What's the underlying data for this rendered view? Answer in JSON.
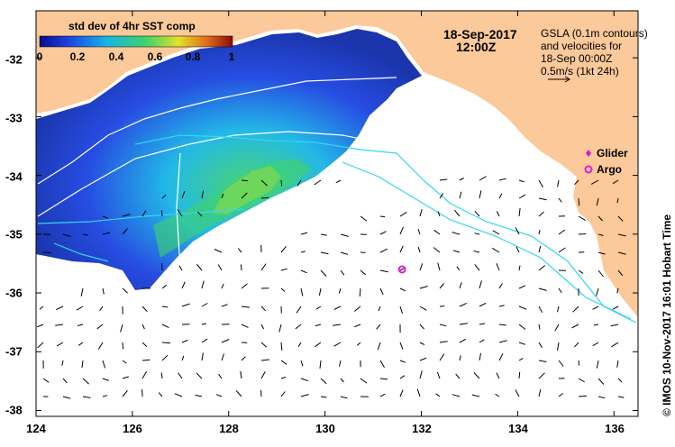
{
  "colorbar": {
    "title": "std dev of 4hr SST comp",
    "ticks": [
      "0",
      "0.2",
      "0.4",
      "0.6",
      "0.8",
      "1"
    ],
    "colors": [
      "#0b0b8f",
      "#1b43e0",
      "#17b5e6",
      "#3fd26a",
      "#e2e22a",
      "#e06a1a",
      "#8b0b0b"
    ]
  },
  "header": {
    "date": "18-Sep-2017",
    "time": "12:00Z"
  },
  "gsla_note": {
    "line1": "GSLA (0.1m contours)",
    "line2": "and velocities for",
    "line3": "18-Sep 00:00Z",
    "scale": "0.5m/s (1kt 24h)"
  },
  "legend": {
    "glider": "Glider",
    "argo": "Argo",
    "glider_color": "#d21bd2",
    "argo_color": "#e01be0"
  },
  "axes": {
    "x_ticks": [
      "124",
      "126",
      "128",
      "130",
      "132",
      "134",
      "136"
    ],
    "y_ticks": [
      "-32",
      "-33",
      "-34",
      "-35",
      "-36",
      "-37",
      "-38"
    ],
    "x_values": [
      124,
      126,
      128,
      130,
      132,
      134,
      136
    ],
    "y_values": [
      -32,
      -33,
      -34,
      -35,
      -36,
      -37,
      -38
    ],
    "lon_range": [
      124,
      136.5
    ],
    "lat_range": [
      -38.1,
      -31.2
    ]
  },
  "argo_position": {
    "lon": 131.6,
    "lat": -35.6
  },
  "credit": "© IMOS 10-Nov-2017 16:01 Hobart Time",
  "colors": {
    "land": "#fbc99a",
    "contour_white": "#ffffff",
    "contour_cyan": "#35d6ef"
  }
}
